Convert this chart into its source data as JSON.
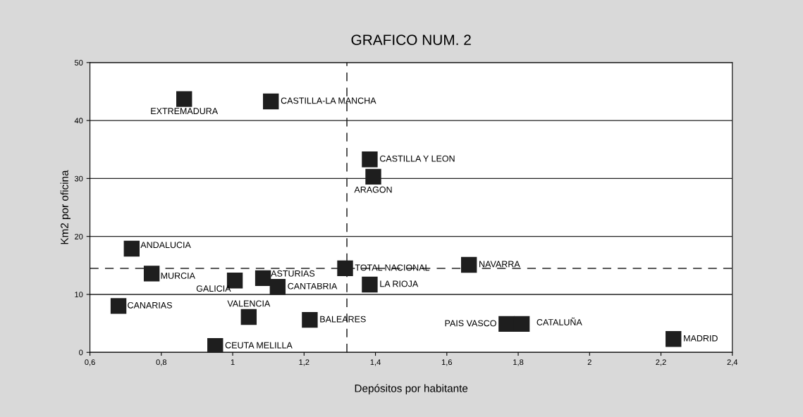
{
  "chart_data": {
    "type": "scatter",
    "title": "GRAFICO NUM. 2",
    "xlabel": "Depósitos por habitante",
    "ylabel": "Km2 por oficina",
    "x": [
      0.864,
      1.107,
      1.384,
      1.394,
      0.717,
      0.773,
      1.006,
      1.085,
      1.126,
      1.315,
      1.662,
      1.384,
      0.68,
      1.045,
      1.216,
      1.767,
      1.81,
      2.235,
      0.951
    ],
    "series": [
      {
        "color": "#1e1e1e",
        "values": [
          43.7,
          43.3,
          33.3,
          30.3,
          17.9,
          13.6,
          12.4,
          12.8,
          11.3,
          14.5,
          15.1,
          11.7,
          8.0,
          6.1,
          5.6,
          4.9,
          4.9,
          2.3,
          1.1
        ]
      }
    ],
    "annotations": [
      {
        "text": "EXTREMADURA",
        "x": 0.864,
        "y": 43.7
      },
      {
        "text": "CASTILLA-LA MANCHA",
        "x": 1.107,
        "y": 43.3
      },
      {
        "text": "CASTILLA Y LEON",
        "x": 1.384,
        "y": 33.3
      },
      {
        "text": "ARAGON",
        "x": 1.394,
        "y": 30.3
      },
      {
        "text": "ANDALUCIA",
        "x": 0.717,
        "y": 17.9
      },
      {
        "text": "MURCIA",
        "x": 0.773,
        "y": 13.6
      },
      {
        "text": "GALICIA",
        "x": 1.006,
        "y": 12.4
      },
      {
        "text": "ASTURIAS",
        "x": 1.085,
        "y": 12.8
      },
      {
        "text": "CANTABRIA",
        "x": 1.126,
        "y": 11.3
      },
      {
        "text": "TOTAL NACIONAL",
        "x": 1.315,
        "y": 14.5
      },
      {
        "text": "NAVARRA",
        "x": 1.662,
        "y": 15.1
      },
      {
        "text": "LA RIOJA",
        "x": 1.384,
        "y": 11.7
      },
      {
        "text": "CANARIAS",
        "x": 0.68,
        "y": 8.0
      },
      {
        "text": "VALENCIA",
        "x": 1.045,
        "y": 6.1
      },
      {
        "text": "BALEARES",
        "x": 1.216,
        "y": 5.6
      },
      {
        "text": "PAIS VASCO",
        "x": 1.767,
        "y": 4.9
      },
      {
        "text": "CATALUÑA",
        "x": 1.81,
        "y": 4.9
      },
      {
        "text": "MADRID",
        "x": 2.235,
        "y": 2.3
      },
      {
        "text": "CEUTA MELILLA",
        "x": 0.951,
        "y": 1.1
      }
    ],
    "xlim": [
      0.6,
      2.4
    ],
    "ylim": [
      0,
      50
    ],
    "xticks": [
      {
        "value": 0.6,
        "label": "0,6"
      },
      {
        "value": 0.8,
        "label": "0,8"
      },
      1,
      {
        "value": 1.2,
        "label": "1,2"
      },
      {
        "value": 1.4,
        "label": "1,4"
      },
      {
        "value": 1.6,
        "label": "1,6"
      },
      {
        "value": 1.8,
        "label": "1,8"
      },
      2,
      {
        "value": 2.2,
        "label": "2,2"
      },
      {
        "value": 2.4,
        "label": "2,4"
      }
    ],
    "yticks": [
      0,
      10,
      20,
      30,
      40,
      50
    ],
    "ref_lines": [
      {
        "axis": "y",
        "value": 14.5,
        "line_style": "dashed"
      },
      {
        "axis": "x",
        "value": 1.32,
        "line_style": "dashed"
      }
    ],
    "grid": "y",
    "marker": "square"
  }
}
